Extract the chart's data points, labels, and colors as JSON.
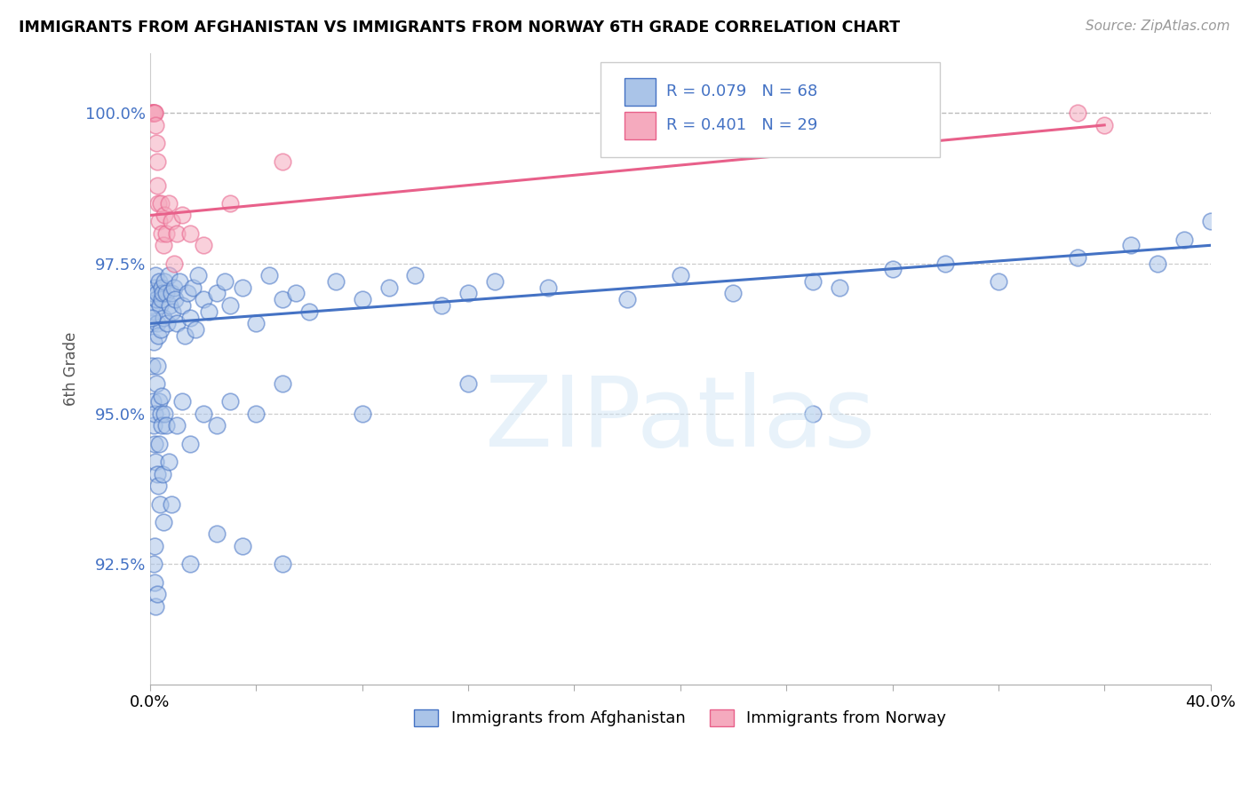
{
  "title": "IMMIGRANTS FROM AFGHANISTAN VS IMMIGRANTS FROM NORWAY 6TH GRADE CORRELATION CHART",
  "source": "Source: ZipAtlas.com",
  "ylabel": "6th Grade",
  "xlim": [
    0.0,
    40.0
  ],
  "ylim": [
    90.5,
    101.0
  ],
  "y_ticks": [
    92.5,
    95.0,
    97.5,
    100.0
  ],
  "y_tick_labels": [
    "92.5%",
    "95.0%",
    "97.5%",
    "100.0%"
  ],
  "color_afghanistan": "#aac4e8",
  "color_norway": "#f5aabe",
  "color_line_afghanistan": "#4472c4",
  "color_line_norway": "#e8608a",
  "legend_r1": "R = 0.079",
  "legend_n1": "N = 68",
  "legend_r2": "R = 0.401",
  "legend_n2": "N = 29",
  "afg_x": [
    0.05,
    0.08,
    0.1,
    0.12,
    0.15,
    0.18,
    0.2,
    0.22,
    0.25,
    0.28,
    0.3,
    0.35,
    0.38,
    0.4,
    0.42,
    0.45,
    0.48,
    0.5,
    0.55,
    0.6,
    0.65,
    0.7,
    0.75,
    0.8,
    0.85,
    0.9,
    0.95,
    1.0,
    1.1,
    1.2,
    1.3,
    1.4,
    1.5,
    1.6,
    1.7,
    1.8,
    2.0,
    2.2,
    2.5,
    2.8,
    3.0,
    3.5,
    4.0,
    4.5,
    5.0,
    5.5,
    6.0,
    7.0,
    8.0,
    9.0,
    10.0,
    11.0,
    12.0,
    13.0,
    15.0,
    18.0,
    20.0,
    22.0,
    25.0,
    28.0,
    30.0,
    32.0,
    35.0,
    37.0,
    38.0,
    39.0,
    40.0,
    26.0
  ],
  "afg_y": [
    96.8,
    96.5,
    97.0,
    96.2,
    96.7,
    97.1,
    97.3,
    96.9,
    97.0,
    96.5,
    96.3,
    97.2,
    96.8,
    96.4,
    97.1,
    96.9,
    97.0,
    96.6,
    97.2,
    97.0,
    96.5,
    97.3,
    96.8,
    97.0,
    96.7,
    97.1,
    96.9,
    96.5,
    97.2,
    96.8,
    96.3,
    97.0,
    96.6,
    97.1,
    96.4,
    97.3,
    96.9,
    96.7,
    97.0,
    97.2,
    96.8,
    97.1,
    96.5,
    97.3,
    96.9,
    97.0,
    96.7,
    97.2,
    96.9,
    97.1,
    97.3,
    96.8,
    97.0,
    97.2,
    97.1,
    96.9,
    97.3,
    97.0,
    97.2,
    97.4,
    97.5,
    97.2,
    97.6,
    97.8,
    97.5,
    97.9,
    98.2,
    97.1
  ],
  "nor_x": [
    0.05,
    0.08,
    0.1,
    0.12,
    0.15,
    0.18,
    0.2,
    0.22,
    0.25,
    0.28,
    0.3,
    0.35,
    0.4,
    0.45,
    0.5,
    0.55,
    0.6,
    0.7,
    0.8,
    0.9,
    1.0,
    1.2,
    1.5,
    2.0,
    3.0,
    5.0,
    20.0,
    35.0,
    36.0
  ],
  "nor_y": [
    100.0,
    100.0,
    100.0,
    100.0,
    100.0,
    100.0,
    99.8,
    99.5,
    99.2,
    98.8,
    98.5,
    98.2,
    98.5,
    98.0,
    97.8,
    98.3,
    98.0,
    98.5,
    98.2,
    97.5,
    98.0,
    98.3,
    98.0,
    97.8,
    98.5,
    99.2,
    100.0,
    100.0,
    99.8
  ],
  "afg_line_x": [
    0.0,
    40.0
  ],
  "afg_line_y": [
    96.5,
    97.8
  ],
  "nor_line_x": [
    0.0,
    36.0
  ],
  "nor_line_y": [
    98.3,
    99.8
  ]
}
